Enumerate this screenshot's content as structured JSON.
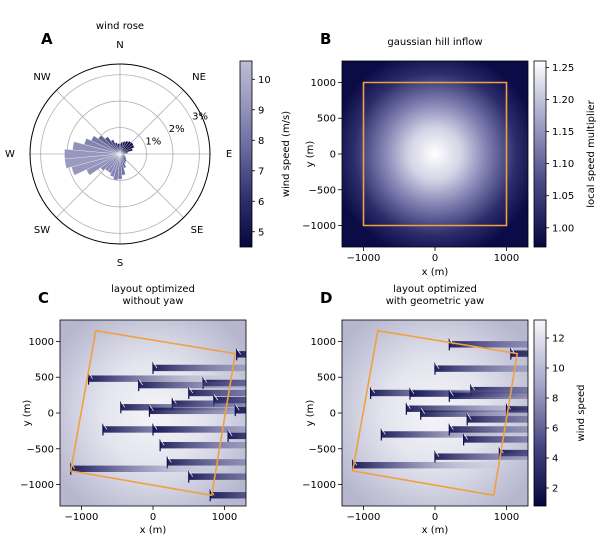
{
  "panels": {
    "a": {
      "letter": "A",
      "title": "wind rose",
      "directions": [
        "N",
        "NE",
        "E",
        "SE",
        "S",
        "SW",
        "W",
        "NW"
      ],
      "radial_ticks": [
        "1%",
        "2%",
        "3%"
      ],
      "colorbar_label": "wind speed (m/s)",
      "colorbar_ticks": [
        "5",
        "6",
        "7",
        "8",
        "9",
        "10"
      ]
    },
    "b": {
      "letter": "B",
      "title": "gaussian hill inflow",
      "xlabel": "x (m)",
      "ylabel": "y (m)",
      "x_ticks": [
        "−1000",
        "0",
        "1000"
      ],
      "y_ticks": [
        "1000",
        "500",
        "0",
        "−500",
        "−1000"
      ],
      "colorbar_label": "local speed multiplier",
      "colorbar_ticks": [
        "1.25",
        "1.20",
        "1.15",
        "1.10",
        "1.05",
        "1.00"
      ]
    },
    "c": {
      "letter": "C",
      "title_line1": "layout optimized",
      "title_line2": "without yaw",
      "xlabel": "x (m)",
      "ylabel": "y (m)",
      "x_ticks": [
        "−1000",
        "0",
        "1000"
      ],
      "y_ticks": [
        "1000",
        "500",
        "0",
        "−500",
        "−1000"
      ]
    },
    "d": {
      "letter": "D",
      "title_line1": "layout optimized",
      "title_line2": "with geometric yaw",
      "xlabel": "x (m)",
      "ylabel": "y (m)",
      "x_ticks": [
        "−1000",
        "0",
        "1000"
      ],
      "y_ticks": [
        "1000",
        "500",
        "0",
        "−500",
        "−1000"
      ],
      "colorbar_label": "wind speed",
      "colorbar_ticks": [
        "12",
        "10",
        "8",
        "6",
        "4",
        "2"
      ]
    }
  },
  "colors": {
    "navy": "#0d0d4d",
    "mid": "#7c7cae",
    "light": "#f4f4f8",
    "boundary": "#f0a040",
    "grid": "#b0b0b0"
  },
  "chart_data": [
    {
      "panel": "A",
      "type": "wind_rose",
      "title": "wind rose",
      "radial_unit": "%",
      "radial_ticks": [
        1,
        2,
        3
      ],
      "colorbar": {
        "label": "wind speed (m/s)",
        "range": [
          4.5,
          10.6
        ],
        "ticks": [
          5,
          6,
          7,
          8,
          9,
          10
        ]
      },
      "sectors": [
        {
          "dir": 0,
          "freq": 0.4,
          "speed": 5.5
        },
        {
          "dir": 10,
          "freq": 0.45,
          "speed": 5.4
        },
        {
          "dir": 20,
          "freq": 0.5,
          "speed": 5.2
        },
        {
          "dir": 30,
          "freq": 0.55,
          "speed": 5.0
        },
        {
          "dir": 40,
          "freq": 0.6,
          "speed": 4.9
        },
        {
          "dir": 50,
          "freq": 0.62,
          "speed": 4.8
        },
        {
          "dir": 60,
          "freq": 0.6,
          "speed": 4.8
        },
        {
          "dir": 70,
          "freq": 0.5,
          "speed": 4.9
        },
        {
          "dir": 80,
          "freq": 0.3,
          "speed": 5.2
        },
        {
          "dir": 90,
          "freq": 0.15,
          "speed": 5.6
        },
        {
          "dir": 100,
          "freq": 0.15,
          "speed": 6.0
        },
        {
          "dir": 110,
          "freq": 0.2,
          "speed": 6.3
        },
        {
          "dir": 120,
          "freq": 0.25,
          "speed": 6.5
        },
        {
          "dir": 130,
          "freq": 0.3,
          "speed": 6.8
        },
        {
          "dir": 140,
          "freq": 0.35,
          "speed": 7.0
        },
        {
          "dir": 150,
          "freq": 0.4,
          "speed": 7.3
        },
        {
          "dir": 160,
          "freq": 0.55,
          "speed": 7.6
        },
        {
          "dir": 170,
          "freq": 0.8,
          "speed": 8.0
        },
        {
          "dir": 180,
          "freq": 0.95,
          "speed": 8.3
        },
        {
          "dir": 190,
          "freq": 1.0,
          "speed": 8.5
        },
        {
          "dir": 200,
          "freq": 0.9,
          "speed": 8.6
        },
        {
          "dir": 210,
          "freq": 0.8,
          "speed": 8.6
        },
        {
          "dir": 220,
          "freq": 0.8,
          "speed": 8.7
        },
        {
          "dir": 230,
          "freq": 0.9,
          "speed": 8.8
        },
        {
          "dir": 240,
          "freq": 1.4,
          "speed": 9.0
        },
        {
          "dir": 250,
          "freq": 1.9,
          "speed": 9.2
        },
        {
          "dir": 260,
          "freq": 2.1,
          "speed": 9.3
        },
        {
          "dir": 270,
          "freq": 2.1,
          "speed": 9.2
        },
        {
          "dir": 280,
          "freq": 1.8,
          "speed": 9.0
        },
        {
          "dir": 290,
          "freq": 1.4,
          "speed": 8.6
        },
        {
          "dir": 300,
          "freq": 1.2,
          "speed": 8.2
        },
        {
          "dir": 310,
          "freq": 1.0,
          "speed": 7.6
        },
        {
          "dir": 320,
          "freq": 0.8,
          "speed": 7.0
        },
        {
          "dir": 330,
          "freq": 0.6,
          "speed": 6.5
        },
        {
          "dir": 340,
          "freq": 0.45,
          "speed": 6.0
        },
        {
          "dir": 350,
          "freq": 0.4,
          "speed": 5.7
        }
      ]
    },
    {
      "panel": "B",
      "type": "heatmap",
      "title": "gaussian hill inflow",
      "xlabel": "x (m)",
      "ylabel": "y (m)",
      "xlim": [
        -1300,
        1300
      ],
      "ylim": [
        -1300,
        1300
      ],
      "colorbar": {
        "label": "local speed multiplier",
        "range": [
          0.97,
          1.26
        ],
        "ticks": [
          1.0,
          1.05,
          1.1,
          1.15,
          1.2,
          1.25
        ]
      },
      "hill_center": [
        0,
        0
      ],
      "peak_multiplier": 1.25,
      "boundary": [
        [
          -1000,
          -1000
        ],
        [
          1000,
          -1000
        ],
        [
          1000,
          1000
        ],
        [
          -1000,
          1000
        ]
      ]
    },
    {
      "panel": "C",
      "type": "scatter",
      "title": "layout optimized without yaw",
      "xlabel": "x (m)",
      "ylabel": "y (m)",
      "xlim": [
        -1300,
        1300
      ],
      "ylim": [
        -1300,
        1300
      ],
      "boundary": [
        [
          -800,
          1150
        ],
        [
          1150,
          830
        ],
        [
          820,
          -1150
        ],
        [
          -1150,
          -810
        ]
      ],
      "turbines": [
        [
          1170,
          820
        ],
        [
          0,
          630
        ],
        [
          -900,
          480
        ],
        [
          700,
          420
        ],
        [
          -200,
          390
        ],
        [
          500,
          280
        ],
        [
          850,
          180
        ],
        [
          270,
          130
        ],
        [
          -450,
          80
        ],
        [
          -50,
          30
        ],
        [
          1150,
          40
        ],
        [
          -700,
          -230
        ],
        [
          0,
          -230
        ],
        [
          100,
          -450
        ],
        [
          1050,
          -320
        ],
        [
          200,
          -690
        ],
        [
          -1150,
          -780
        ],
        [
          500,
          -890
        ],
        [
          800,
          -1150
        ]
      ]
    },
    {
      "panel": "D",
      "type": "scatter",
      "title": "layout optimized with geometric yaw",
      "xlabel": "x (m)",
      "ylabel": "y (m)",
      "xlim": [
        -1300,
        1300
      ],
      "ylim": [
        -1300,
        1300
      ],
      "colorbar": {
        "label": "wind speed",
        "range": [
          0.8,
          13.2
        ],
        "ticks": [
          2,
          4,
          6,
          8,
          10,
          12
        ]
      },
      "boundary": [
        [
          -800,
          1150
        ],
        [
          1150,
          830
        ],
        [
          820,
          -1150
        ],
        [
          -1150,
          -810
        ]
      ],
      "turbines": [
        [
          200,
          960
        ],
        [
          1060,
          830
        ],
        [
          0,
          620
        ],
        [
          500,
          320
        ],
        [
          -900,
          280
        ],
        [
          -350,
          270
        ],
        [
          200,
          240
        ],
        [
          -400,
          60
        ],
        [
          1000,
          50
        ],
        [
          -200,
          -10
        ],
        [
          450,
          -90
        ],
        [
          -750,
          -300
        ],
        [
          200,
          -230
        ],
        [
          400,
          -370
        ],
        [
          900,
          -560
        ],
        [
          0,
          -610
        ],
        [
          -1150,
          -730
        ]
      ]
    }
  ]
}
